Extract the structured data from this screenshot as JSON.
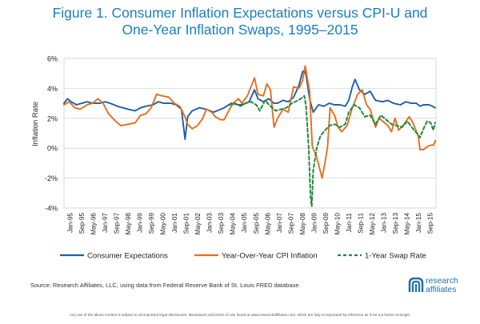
{
  "title_line1": "Figure 1. Consumer Inflation Expectations versus CPI-U and",
  "title_line2": "One-Year Inflation Swaps, 1995–2015",
  "source": "Source: Research Affiliates, LLC, using data from Federal Reserve Bank of St. Louis FRED database.",
  "disclaimer": "Any use of the above content is subject to all important legal disclosures, disclaimers and terms of use found at www.researchaffiliates.com, which are fully incorporated by reference as if set out herein at length.",
  "logo": {
    "line1": "research",
    "line2": "affiliates",
    "color": "#1d6fb0"
  },
  "chart_data": {
    "type": "line",
    "title": "",
    "xlabel": "",
    "ylabel": "Inflation Rate",
    "ylim": [
      -4,
      6
    ],
    "xlim": [
      1995.0,
      2015.9
    ],
    "yticks": [
      "-4%",
      "-2%",
      "0%",
      "2%",
      "4%",
      "6%"
    ],
    "yticks_values": [
      -4,
      -2,
      0,
      2,
      4,
      6
    ],
    "grid": true,
    "legend": "bottom",
    "xtick_labels": [
      "Jan-95",
      "Sep-95",
      "May-96",
      "Jan-97",
      "Sep-97",
      "May-98",
      "Jan-99",
      "Sep-99",
      "May-00",
      "Jan-01",
      "Sep-01",
      "May-02",
      "Jan-03",
      "Sep-03",
      "May-04",
      "Jan-05",
      "Sep-05",
      "May-06",
      "Jan-07",
      "Sep-07",
      "May-08",
      "Jan-09",
      "Sep-09",
      "May-10",
      "Jan-11",
      "Sep-11",
      "May-12",
      "Jan-13",
      "Sep-13",
      "May-14",
      "Jan-15",
      "Sep-15"
    ],
    "series": [
      {
        "name": "Consumer Expectations",
        "color": "#1f5fa8",
        "dash": "solid",
        "points": [
          [
            1995.0,
            3.0
          ],
          [
            1995.2,
            3.3
          ],
          [
            1995.4,
            3.1
          ],
          [
            1995.7,
            2.9
          ],
          [
            1996.0,
            3.0
          ],
          [
            1996.3,
            3.1
          ],
          [
            1996.6,
            3.0
          ],
          [
            1997.0,
            3.0
          ],
          [
            1997.3,
            3.1
          ],
          [
            1997.6,
            3.0
          ],
          [
            1998.0,
            2.8
          ],
          [
            1998.3,
            2.7
          ],
          [
            1998.6,
            2.6
          ],
          [
            1999.0,
            2.5
          ],
          [
            1999.3,
            2.7
          ],
          [
            1999.6,
            2.8
          ],
          [
            2000.0,
            2.9
          ],
          [
            2000.3,
            3.1
          ],
          [
            2000.6,
            3.0
          ],
          [
            2001.0,
            3.0
          ],
          [
            2001.3,
            2.9
          ],
          [
            2001.6,
            2.6
          ],
          [
            2001.72,
            1.4
          ],
          [
            2001.8,
            0.6
          ],
          [
            2001.95,
            2.1
          ],
          [
            2002.2,
            2.5
          ],
          [
            2002.6,
            2.7
          ],
          [
            2003.0,
            2.6
          ],
          [
            2003.4,
            2.4
          ],
          [
            2003.8,
            2.6
          ],
          [
            2004.0,
            2.7
          ],
          [
            2004.4,
            3.0
          ],
          [
            2004.8,
            2.9
          ],
          [
            2005.0,
            2.9
          ],
          [
            2005.4,
            3.1
          ],
          [
            2005.7,
            3.9
          ],
          [
            2005.9,
            3.3
          ],
          [
            2006.2,
            3.1
          ],
          [
            2006.5,
            3.3
          ],
          [
            2006.8,
            3.0
          ],
          [
            2007.0,
            3.0
          ],
          [
            2007.3,
            3.2
          ],
          [
            2007.6,
            3.1
          ],
          [
            2007.9,
            3.4
          ],
          [
            2008.2,
            4.2
          ],
          [
            2008.4,
            5.1
          ],
          [
            2008.5,
            5.2
          ],
          [
            2008.6,
            4.9
          ],
          [
            2008.8,
            3.3
          ],
          [
            2009.0,
            2.4
          ],
          [
            2009.3,
            2.9
          ],
          [
            2009.6,
            2.8
          ],
          [
            2009.9,
            3.0
          ],
          [
            2010.2,
            2.9
          ],
          [
            2010.5,
            2.9
          ],
          [
            2010.8,
            2.8
          ],
          [
            2011.0,
            3.2
          ],
          [
            2011.2,
            4.1
          ],
          [
            2011.35,
            4.6
          ],
          [
            2011.6,
            3.9
          ],
          [
            2011.9,
            3.6
          ],
          [
            2012.2,
            3.8
          ],
          [
            2012.5,
            3.2
          ],
          [
            2012.9,
            3.1
          ],
          [
            2013.2,
            3.2
          ],
          [
            2013.5,
            3.0
          ],
          [
            2013.9,
            2.9
          ],
          [
            2014.2,
            3.1
          ],
          [
            2014.5,
            3.0
          ],
          [
            2014.8,
            3.0
          ],
          [
            2015.0,
            2.8
          ],
          [
            2015.2,
            2.9
          ],
          [
            2015.5,
            2.9
          ],
          [
            2015.7,
            2.8
          ],
          [
            2015.85,
            2.7
          ]
        ]
      },
      {
        "name": "Year-Over-Year CPI Inflation",
        "color": "#e36f1e",
        "dash": "solid",
        "points": [
          [
            1995.0,
            2.9
          ],
          [
            1995.3,
            3.1
          ],
          [
            1995.6,
            2.7
          ],
          [
            1995.9,
            2.6
          ],
          [
            1996.3,
            2.9
          ],
          [
            1996.6,
            3.0
          ],
          [
            1996.9,
            3.3
          ],
          [
            1997.2,
            3.0
          ],
          [
            1997.5,
            2.3
          ],
          [
            1997.9,
            1.8
          ],
          [
            1998.2,
            1.5
          ],
          [
            1998.6,
            1.6
          ],
          [
            1999.0,
            1.7
          ],
          [
            1999.3,
            2.2
          ],
          [
            1999.6,
            2.3
          ],
          [
            1999.9,
            2.7
          ],
          [
            2000.2,
            3.6
          ],
          [
            2000.5,
            3.5
          ],
          [
            2000.9,
            3.4
          ],
          [
            2001.2,
            3.0
          ],
          [
            2001.5,
            2.8
          ],
          [
            2001.8,
            2.1
          ],
          [
            2001.95,
            1.6
          ],
          [
            2002.2,
            1.3
          ],
          [
            2002.5,
            1.5
          ],
          [
            2002.8,
            2.0
          ],
          [
            2003.0,
            2.6
          ],
          [
            2003.3,
            2.4
          ],
          [
            2003.5,
            2.1
          ],
          [
            2003.8,
            1.9
          ],
          [
            2004.0,
            1.9
          ],
          [
            2004.3,
            2.6
          ],
          [
            2004.5,
            3.0
          ],
          [
            2004.8,
            3.3
          ],
          [
            2005.0,
            3.0
          ],
          [
            2005.3,
            3.5
          ],
          [
            2005.7,
            4.7
          ],
          [
            2005.9,
            3.6
          ],
          [
            2006.2,
            3.5
          ],
          [
            2006.4,
            4.3
          ],
          [
            2006.6,
            3.9
          ],
          [
            2006.8,
            1.4
          ],
          [
            2007.0,
            2.0
          ],
          [
            2007.3,
            2.6
          ],
          [
            2007.6,
            2.4
          ],
          [
            2007.9,
            4.1
          ],
          [
            2008.2,
            4.0
          ],
          [
            2008.4,
            4.5
          ],
          [
            2008.55,
            5.5
          ],
          [
            2008.8,
            3.8
          ],
          [
            2008.95,
            0.1
          ],
          [
            2009.2,
            -0.6
          ],
          [
            2009.5,
            -2.0
          ],
          [
            2009.6,
            -1.4
          ],
          [
            2009.8,
            0.0
          ],
          [
            2009.95,
            2.7
          ],
          [
            2010.2,
            2.2
          ],
          [
            2010.4,
            1.4
          ],
          [
            2010.6,
            1.1
          ],
          [
            2010.9,
            1.5
          ],
          [
            2011.2,
            2.7
          ],
          [
            2011.5,
            3.6
          ],
          [
            2011.75,
            3.9
          ],
          [
            2012.0,
            2.9
          ],
          [
            2012.2,
            2.6
          ],
          [
            2012.5,
            1.4
          ],
          [
            2012.7,
            2.0
          ],
          [
            2012.9,
            1.8
          ],
          [
            2013.2,
            1.5
          ],
          [
            2013.4,
            1.1
          ],
          [
            2013.6,
            2.0
          ],
          [
            2013.8,
            1.2
          ],
          [
            2014.1,
            1.6
          ],
          [
            2014.4,
            2.1
          ],
          [
            2014.6,
            1.7
          ],
          [
            2014.9,
            0.8
          ],
          [
            2015.0,
            -0.1
          ],
          [
            2015.2,
            -0.1
          ],
          [
            2015.4,
            0.1
          ],
          [
            2015.6,
            0.2
          ],
          [
            2015.75,
            0.2
          ],
          [
            2015.87,
            0.5
          ]
        ]
      },
      {
        "name": "1-Year Swap Rate",
        "color": "#1e8a3a",
        "dash": "dashed",
        "points": [
          [
            2004.3,
            2.9
          ],
          [
            2004.6,
            3.0
          ],
          [
            2004.9,
            2.8
          ],
          [
            2005.2,
            3.0
          ],
          [
            2005.5,
            3.1
          ],
          [
            2005.8,
            2.9
          ],
          [
            2006.0,
            2.5
          ],
          [
            2006.3,
            3.2
          ],
          [
            2006.6,
            2.8
          ],
          [
            2006.9,
            2.5
          ],
          [
            2007.2,
            2.6
          ],
          [
            2007.5,
            2.7
          ],
          [
            2007.8,
            3.0
          ],
          [
            2008.0,
            3.1
          ],
          [
            2008.3,
            3.3
          ],
          [
            2008.5,
            3.5
          ],
          [
            2008.6,
            2.8
          ],
          [
            2008.75,
            0.0
          ],
          [
            2008.85,
            -3.2
          ],
          [
            2008.92,
            -3.9
          ],
          [
            2009.0,
            -1.5
          ],
          [
            2009.2,
            0.0
          ],
          [
            2009.4,
            0.8
          ],
          [
            2009.6,
            1.1
          ],
          [
            2009.9,
            1.5
          ],
          [
            2010.2,
            1.6
          ],
          [
            2010.5,
            1.4
          ],
          [
            2010.8,
            1.6
          ],
          [
            2011.0,
            2.4
          ],
          [
            2011.3,
            2.9
          ],
          [
            2011.6,
            2.7
          ],
          [
            2011.9,
            2.1
          ],
          [
            2012.2,
            2.2
          ],
          [
            2012.5,
            1.6
          ],
          [
            2012.8,
            2.2
          ],
          [
            2013.1,
            1.9
          ],
          [
            2013.4,
            1.6
          ],
          [
            2013.7,
            1.5
          ],
          [
            2014.0,
            1.4
          ],
          [
            2014.3,
            1.8
          ],
          [
            2014.6,
            1.3
          ],
          [
            2014.9,
            0.9
          ],
          [
            2015.0,
            0.7
          ],
          [
            2015.2,
            1.3
          ],
          [
            2015.4,
            1.8
          ],
          [
            2015.6,
            1.7
          ],
          [
            2015.75,
            1.2
          ],
          [
            2015.85,
            1.7
          ]
        ]
      }
    ]
  }
}
